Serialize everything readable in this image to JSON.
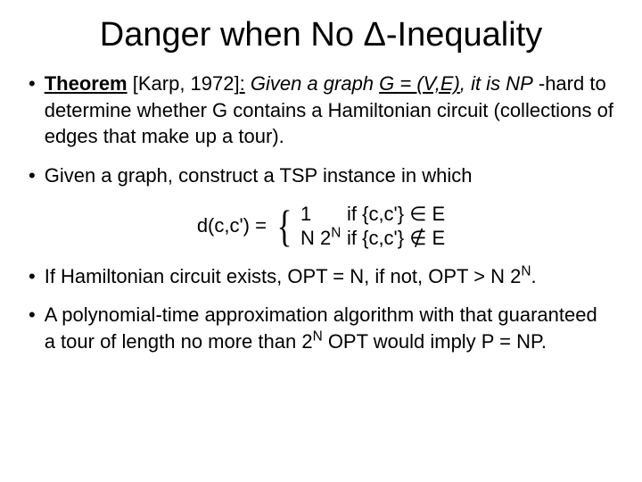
{
  "title": {
    "text": "Danger when No Δ-Inequality"
  },
  "items": [
    {
      "theorem_label": "Theorem",
      "citation": " [Karp, 1972]",
      "colon": ":",
      "given_prefix": "  Given a graph ",
      "graph_def": "G = (V,E)",
      "given_suffix": ", it is NP",
      "line2": " -hard to determine whether G contains a Hamiltonian circuit (collections of edges that make up a tour)."
    },
    {
      "text": "Given a graph, construct a TSP instance in which"
    },
    {
      "lhs": "d(c,c') = ",
      "row1_left": "1",
      "row1_right": "if {c,c'} ∈ E",
      "row2_left_pre": "N 2",
      "row2_left_sup": "N",
      "row2_right": " if {c,c'} ∉ E"
    },
    {
      "p1": "If Hamiltonian circuit exists, OPT = N, if not, OPT > N 2",
      "sup": "N",
      "p2": "."
    },
    {
      "p1": "A polynomial-time approximation algorithm with that guaranteed a tour of length no more than 2",
      "sup1": "N",
      "p2": " OPT would imply P = NP."
    }
  ],
  "colors": {
    "text": "#000000",
    "bg": "#ffffff"
  }
}
